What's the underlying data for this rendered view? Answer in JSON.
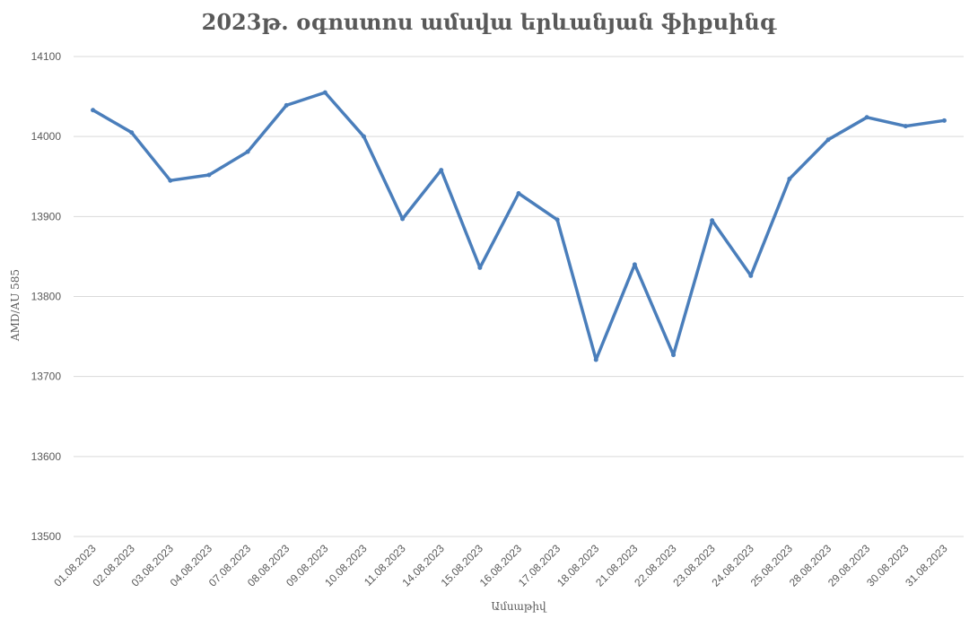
{
  "chart_data": {
    "type": "line",
    "title": "2023թ. օգոստոս ամսվա երևանյան ֆիքսինգ",
    "xlabel": "Ամսաթիվ",
    "ylabel": "AMD/AU 585",
    "ylim": [
      13500,
      14100
    ],
    "yticks": [
      13500,
      13600,
      13700,
      13800,
      13900,
      14000,
      14100
    ],
    "grid": true,
    "line_color": "#4a7ebb",
    "categories": [
      "01.08.2023",
      "02.08.2023",
      "03.08.2023",
      "04.08.2023",
      "07.08.2023",
      "08.08.2023",
      "09.08.2023",
      "10.08.2023",
      "11.08.2023",
      "14.08.2023",
      "15.08.2023",
      "16.08.2023",
      "17.08.2023",
      "18.08.2023",
      "21.08.2023",
      "22.08.2023",
      "23.08.2023",
      "24.08.2023",
      "25.08.2023",
      "28.08.2023",
      "29.08.2023",
      "30.08.2023",
      "31.08.2023"
    ],
    "values": [
      14033,
      14005,
      13945,
      13952,
      13981,
      14039,
      14055,
      14000,
      13897,
      13958,
      13836,
      13929,
      13896,
      13721,
      13840,
      13727,
      13895,
      13826,
      13947,
      13996,
      14024,
      14013,
      14020
    ]
  }
}
